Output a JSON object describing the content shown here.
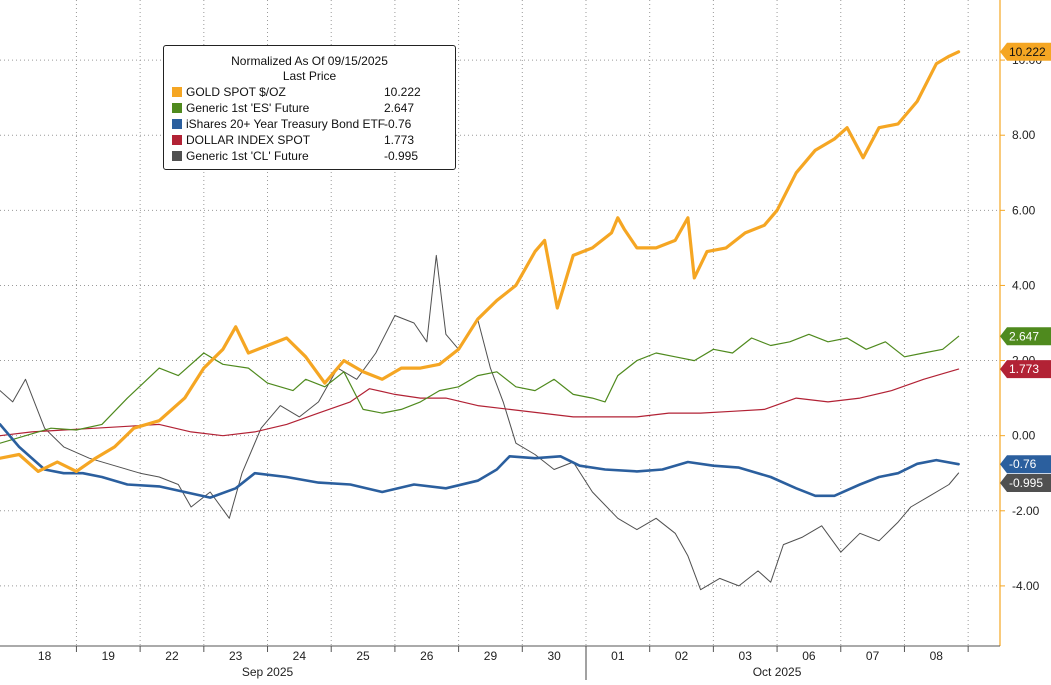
{
  "chart_data": {
    "type": "line",
    "title": "Normalized As Of 09/15/2025",
    "subtitle": "Last Price",
    "ylim": [
      -5.6,
      11.6
    ],
    "y_ticks": [
      {
        "value": 10,
        "label": "10.00"
      },
      {
        "value": 8,
        "label": "8.00"
      },
      {
        "value": 6,
        "label": "6.00"
      },
      {
        "value": 4,
        "label": "4.00"
      },
      {
        "value": 2,
        "label": "2.00"
      },
      {
        "value": 0,
        "label": "0.00"
      },
      {
        "value": -2,
        "label": "-2.00"
      },
      {
        "value": -4,
        "label": "-4.00"
      }
    ],
    "x_day_ticks": [
      "18",
      "19",
      "22",
      "23",
      "24",
      "25",
      "26",
      "29",
      "30",
      "01",
      "02",
      "03",
      "06",
      "07",
      "08"
    ],
    "x_month_labels": [
      "Sep 2025",
      "Oct 2025"
    ],
    "x_range": [
      0,
      15.7
    ],
    "series": [
      {
        "name": "GOLD SPOT $/OZ",
        "value_label": "10.222",
        "color": "#f5a623",
        "width": 3.2,
        "points": [
          [
            0,
            -0.6
          ],
          [
            0.3,
            -0.5
          ],
          [
            0.6,
            -0.95
          ],
          [
            0.9,
            -0.7
          ],
          [
            1.2,
            -0.95
          ],
          [
            1.5,
            -0.6
          ],
          [
            1.8,
            -0.3
          ],
          [
            2.1,
            0.2
          ],
          [
            2.5,
            0.4
          ],
          [
            2.9,
            1.0
          ],
          [
            3.2,
            1.8
          ],
          [
            3.5,
            2.3
          ],
          [
            3.7,
            2.9
          ],
          [
            3.9,
            2.2
          ],
          [
            4.2,
            2.4
          ],
          [
            4.5,
            2.6
          ],
          [
            4.8,
            2.1
          ],
          [
            5.1,
            1.4
          ],
          [
            5.4,
            2.0
          ],
          [
            5.7,
            1.7
          ],
          [
            6.0,
            1.5
          ],
          [
            6.3,
            1.8
          ],
          [
            6.6,
            1.8
          ],
          [
            6.9,
            1.9
          ],
          [
            7.2,
            2.3
          ],
          [
            7.5,
            3.1
          ],
          [
            7.8,
            3.6
          ],
          [
            8.1,
            4.0
          ],
          [
            8.4,
            4.9
          ],
          [
            8.55,
            5.2
          ],
          [
            8.75,
            3.4
          ],
          [
            9.0,
            4.8
          ],
          [
            9.3,
            5.0
          ],
          [
            9.6,
            5.4
          ],
          [
            9.7,
            5.8
          ],
          [
            9.8,
            5.5
          ],
          [
            10.0,
            5.0
          ],
          [
            10.3,
            5.0
          ],
          [
            10.6,
            5.2
          ],
          [
            10.8,
            5.8
          ],
          [
            10.9,
            4.2
          ],
          [
            11.1,
            4.9
          ],
          [
            11.4,
            5.0
          ],
          [
            11.7,
            5.4
          ],
          [
            12.0,
            5.6
          ],
          [
            12.2,
            6.0
          ],
          [
            12.5,
            7.0
          ],
          [
            12.8,
            7.6
          ],
          [
            13.1,
            7.9
          ],
          [
            13.3,
            8.2
          ],
          [
            13.55,
            7.4
          ],
          [
            13.8,
            8.2
          ],
          [
            14.1,
            8.3
          ],
          [
            14.4,
            8.9
          ],
          [
            14.7,
            9.9
          ],
          [
            14.9,
            10.1
          ],
          [
            15.05,
            10.222
          ]
        ]
      },
      {
        "name": "Generic 1st 'ES' Future",
        "value_label": "2.647",
        "color": "#4f8a1e",
        "width": 1.2,
        "points": [
          [
            0,
            -0.2
          ],
          [
            0.4,
            0.0
          ],
          [
            0.8,
            0.2
          ],
          [
            1.2,
            0.15
          ],
          [
            1.6,
            0.3
          ],
          [
            2.0,
            1.0
          ],
          [
            2.5,
            1.8
          ],
          [
            2.8,
            1.6
          ],
          [
            3.2,
            2.2
          ],
          [
            3.5,
            1.9
          ],
          [
            3.9,
            1.8
          ],
          [
            4.2,
            1.4
          ],
          [
            4.6,
            1.2
          ],
          [
            4.8,
            1.5
          ],
          [
            5.1,
            1.3
          ],
          [
            5.4,
            1.7
          ],
          [
            5.7,
            0.7
          ],
          [
            6.0,
            0.6
          ],
          [
            6.3,
            0.7
          ],
          [
            6.6,
            0.9
          ],
          [
            6.9,
            1.2
          ],
          [
            7.2,
            1.3
          ],
          [
            7.5,
            1.6
          ],
          [
            7.8,
            1.7
          ],
          [
            8.1,
            1.3
          ],
          [
            8.4,
            1.2
          ],
          [
            8.7,
            1.5
          ],
          [
            9.0,
            1.1
          ],
          [
            9.3,
            1.0
          ],
          [
            9.5,
            0.9
          ],
          [
            9.7,
            1.6
          ],
          [
            10.0,
            2.0
          ],
          [
            10.3,
            2.2
          ],
          [
            10.6,
            2.1
          ],
          [
            10.9,
            2.0
          ],
          [
            11.2,
            2.3
          ],
          [
            11.5,
            2.2
          ],
          [
            11.8,
            2.6
          ],
          [
            12.1,
            2.4
          ],
          [
            12.4,
            2.5
          ],
          [
            12.7,
            2.7
          ],
          [
            13.0,
            2.5
          ],
          [
            13.3,
            2.6
          ],
          [
            13.6,
            2.3
          ],
          [
            13.9,
            2.5
          ],
          [
            14.2,
            2.1
          ],
          [
            14.5,
            2.2
          ],
          [
            14.8,
            2.3
          ],
          [
            15.05,
            2.647
          ]
        ]
      },
      {
        "name": "iShares 20+ Year Treasury Bond ETF",
        "value_label": "-0.76",
        "color": "#2b5f9e",
        "width": 2.6,
        "points": [
          [
            0,
            0.3
          ],
          [
            0.3,
            -0.3
          ],
          [
            0.7,
            -0.9
          ],
          [
            1.0,
            -1.0
          ],
          [
            1.3,
            -1.0
          ],
          [
            1.6,
            -1.1
          ],
          [
            2.0,
            -1.3
          ],
          [
            2.5,
            -1.35
          ],
          [
            2.9,
            -1.5
          ],
          [
            3.3,
            -1.65
          ],
          [
            3.7,
            -1.4
          ],
          [
            4.0,
            -1.0
          ],
          [
            4.5,
            -1.1
          ],
          [
            5.0,
            -1.25
          ],
          [
            5.5,
            -1.3
          ],
          [
            6.0,
            -1.5
          ],
          [
            6.5,
            -1.3
          ],
          [
            7.0,
            -1.4
          ],
          [
            7.5,
            -1.2
          ],
          [
            7.8,
            -0.9
          ],
          [
            8.0,
            -0.55
          ],
          [
            8.4,
            -0.6
          ],
          [
            8.8,
            -0.55
          ],
          [
            9.1,
            -0.8
          ],
          [
            9.5,
            -0.9
          ],
          [
            10.0,
            -0.95
          ],
          [
            10.4,
            -0.9
          ],
          [
            10.8,
            -0.7
          ],
          [
            11.2,
            -0.8
          ],
          [
            11.6,
            -0.85
          ],
          [
            12.1,
            -1.1
          ],
          [
            12.5,
            -1.4
          ],
          [
            12.8,
            -1.6
          ],
          [
            13.1,
            -1.6
          ],
          [
            13.5,
            -1.3
          ],
          [
            13.8,
            -1.1
          ],
          [
            14.1,
            -1.0
          ],
          [
            14.4,
            -0.75
          ],
          [
            14.7,
            -0.65
          ],
          [
            15.05,
            -0.76
          ]
        ]
      },
      {
        "name": "DOLLAR INDEX SPOT",
        "value_label": "1.773",
        "color": "#b22235",
        "width": 1.2,
        "points": [
          [
            0,
            0.0
          ],
          [
            0.5,
            0.1
          ],
          [
            1.0,
            0.15
          ],
          [
            1.5,
            0.2
          ],
          [
            2.0,
            0.25
          ],
          [
            2.5,
            0.3
          ],
          [
            3.0,
            0.1
          ],
          [
            3.5,
            0.0
          ],
          [
            4.0,
            0.1
          ],
          [
            4.5,
            0.3
          ],
          [
            5.0,
            0.6
          ],
          [
            5.5,
            0.9
          ],
          [
            5.8,
            1.25
          ],
          [
            6.2,
            1.1
          ],
          [
            6.6,
            1.0
          ],
          [
            7.0,
            1.0
          ],
          [
            7.5,
            0.8
          ],
          [
            8.0,
            0.7
          ],
          [
            8.5,
            0.6
          ],
          [
            9.0,
            0.5
          ],
          [
            9.5,
            0.5
          ],
          [
            10.0,
            0.5
          ],
          [
            10.5,
            0.6
          ],
          [
            11.0,
            0.6
          ],
          [
            11.5,
            0.65
          ],
          [
            12.0,
            0.7
          ],
          [
            12.5,
            1.0
          ],
          [
            13.0,
            0.9
          ],
          [
            13.5,
            1.0
          ],
          [
            14.0,
            1.2
          ],
          [
            14.5,
            1.5
          ],
          [
            14.8,
            1.65
          ],
          [
            15.05,
            1.773
          ]
        ]
      },
      {
        "name": "Generic 1st 'CL' Future",
        "value_label": "-0.995",
        "color": "#505050",
        "width": 1.0,
        "points": [
          [
            0,
            1.2
          ],
          [
            0.2,
            0.9
          ],
          [
            0.4,
            1.5
          ],
          [
            0.7,
            0.2
          ],
          [
            1.0,
            -0.3
          ],
          [
            1.4,
            -0.6
          ],
          [
            1.8,
            -0.8
          ],
          [
            2.2,
            -1.0
          ],
          [
            2.5,
            -1.1
          ],
          [
            2.8,
            -1.3
          ],
          [
            3.0,
            -1.9
          ],
          [
            3.3,
            -1.5
          ],
          [
            3.6,
            -2.2
          ],
          [
            3.8,
            -1.0
          ],
          [
            4.1,
            0.2
          ],
          [
            4.4,
            0.8
          ],
          [
            4.7,
            0.5
          ],
          [
            5.0,
            0.9
          ],
          [
            5.3,
            1.8
          ],
          [
            5.6,
            1.5
          ],
          [
            5.9,
            2.2
          ],
          [
            6.2,
            3.2
          ],
          [
            6.5,
            3.0
          ],
          [
            6.7,
            2.5
          ],
          [
            6.85,
            4.8
          ],
          [
            7.0,
            2.7
          ],
          [
            7.2,
            2.3
          ],
          [
            7.5,
            3.1
          ],
          [
            7.7,
            1.8
          ],
          [
            7.9,
            0.9
          ],
          [
            8.1,
            -0.2
          ],
          [
            8.4,
            -0.5
          ],
          [
            8.7,
            -0.9
          ],
          [
            9.0,
            -0.7
          ],
          [
            9.3,
            -1.5
          ],
          [
            9.7,
            -2.2
          ],
          [
            10.0,
            -2.5
          ],
          [
            10.3,
            -2.2
          ],
          [
            10.6,
            -2.6
          ],
          [
            10.8,
            -3.2
          ],
          [
            11.0,
            -4.1
          ],
          [
            11.3,
            -3.8
          ],
          [
            11.6,
            -4.0
          ],
          [
            11.9,
            -3.6
          ],
          [
            12.1,
            -3.9
          ],
          [
            12.3,
            -2.9
          ],
          [
            12.6,
            -2.7
          ],
          [
            12.9,
            -2.4
          ],
          [
            13.2,
            -3.1
          ],
          [
            13.5,
            -2.6
          ],
          [
            13.8,
            -2.8
          ],
          [
            14.1,
            -2.3
          ],
          [
            14.3,
            -1.9
          ],
          [
            14.6,
            -1.6
          ],
          [
            14.9,
            -1.3
          ],
          [
            15.05,
            -0.995
          ]
        ]
      }
    ]
  }
}
